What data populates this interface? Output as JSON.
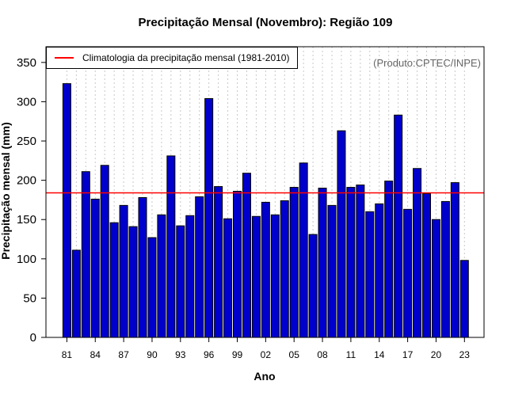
{
  "chart_data": {
    "type": "bar",
    "title": "Precipitação Mensal (Novembro): Região 109",
    "xlabel": "Ano",
    "ylabel": "Precipitação mensal (mm)",
    "credit": "(Produto:CPTEC/INPE)",
    "legend": {
      "label": "Climatologia da precipitação mensal (1981-2010)",
      "placement": "top-left"
    },
    "climatology": 184,
    "ylim": [
      0,
      370
    ],
    "yticks": [
      0,
      50,
      100,
      150,
      200,
      250,
      300,
      350
    ],
    "xtick_labels": [
      "81",
      "84",
      "87",
      "90",
      "93",
      "96",
      "99",
      "02",
      "05",
      "08",
      "11",
      "14",
      "17",
      "20",
      "23"
    ],
    "xtick_years": [
      1981,
      1984,
      1987,
      1990,
      1993,
      1996,
      1999,
      2002,
      2005,
      2008,
      2011,
      2014,
      2017,
      2020,
      2023
    ],
    "categories": [
      1981,
      1982,
      1983,
      1984,
      1985,
      1986,
      1987,
      1988,
      1989,
      1990,
      1991,
      1992,
      1993,
      1994,
      1995,
      1996,
      1997,
      1998,
      1999,
      2000,
      2001,
      2002,
      2003,
      2004,
      2005,
      2006,
      2007,
      2008,
      2009,
      2010,
      2011,
      2012,
      2013,
      2014,
      2015,
      2016,
      2017,
      2018,
      2019,
      2020,
      2021,
      2022,
      2023
    ],
    "values": [
      323,
      111,
      211,
      176,
      219,
      146,
      168,
      141,
      178,
      127,
      156,
      231,
      142,
      155,
      179,
      304,
      192,
      151,
      186,
      209,
      154,
      172,
      156,
      174,
      191,
      222,
      131,
      190,
      168,
      263,
      191,
      194,
      160,
      170,
      199,
      283,
      163,
      215,
      183,
      150,
      173,
      197,
      98
    ],
    "grid": true,
    "colors": {
      "bar_fill": "#0000CD",
      "bar_stroke": "#000000",
      "climatology_line": "#FF0000",
      "grid": "#C8C8C8",
      "credit_text": "#666666"
    }
  }
}
